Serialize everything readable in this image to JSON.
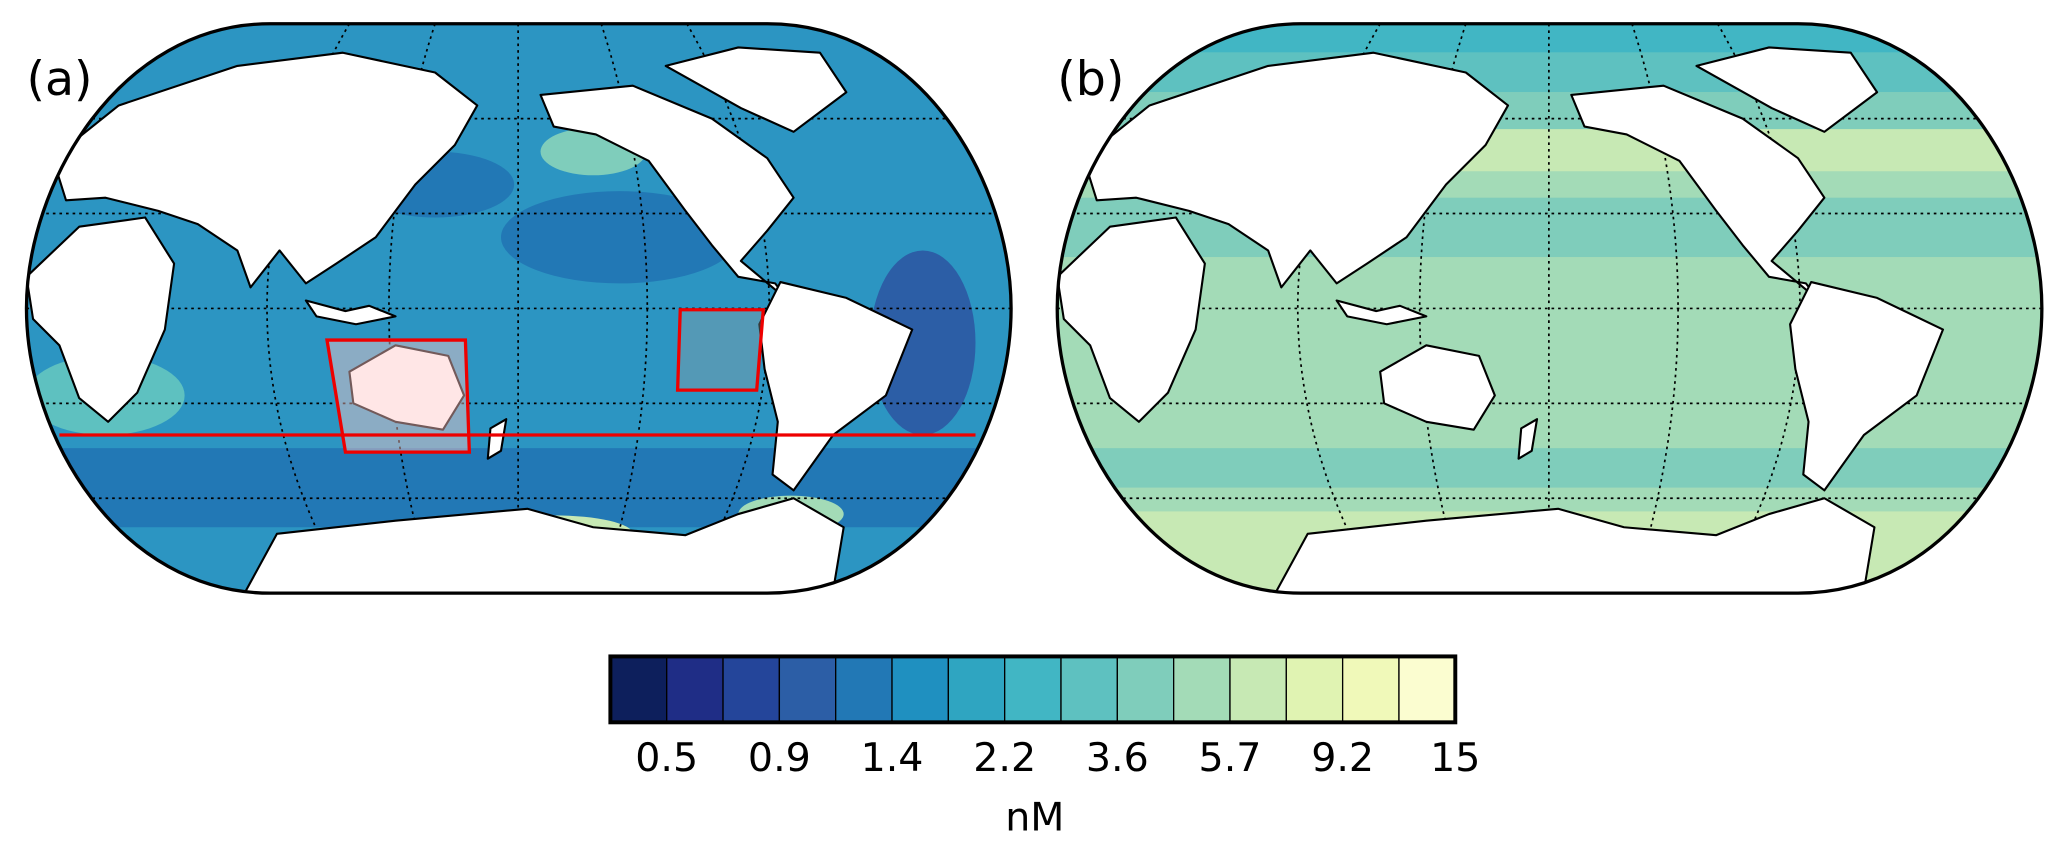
{
  "panels": [
    {
      "label": "(a)"
    },
    {
      "label": "(b)"
    }
  ],
  "colorbar": {
    "colors": [
      "#0d1f5c",
      "#1f2d86",
      "#24459a",
      "#2c5ea6",
      "#2278b5",
      "#1f90c0",
      "#2fa5c1",
      "#41b6c4",
      "#5ec1c0",
      "#7fcdbb",
      "#a3dbb7",
      "#c7e9b4",
      "#e0f3b2",
      "#f0f9b9",
      "#fbfdd0"
    ],
    "ticks": [
      0.5,
      0.9,
      1.4,
      2.2,
      3.6,
      5.7,
      9.2,
      15
    ],
    "label": "nM"
  }
}
